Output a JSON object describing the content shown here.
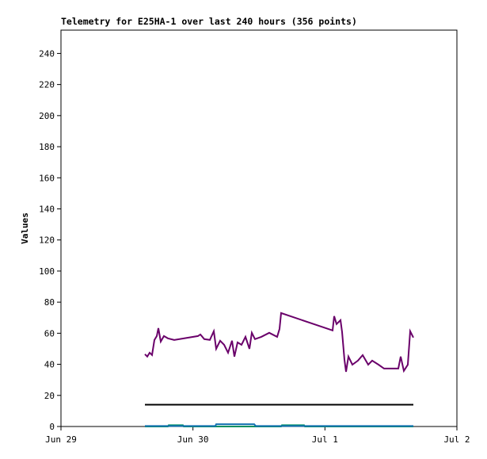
{
  "chart_data": {
    "type": "line",
    "title": "Telemetry for E25HA-1 over last 240 hours (356 points)",
    "y_label": "Values",
    "xlim": [
      0,
      3
    ],
    "xticks": [
      {
        "value": 0,
        "label": "Jun 29"
      },
      {
        "value": 1,
        "label": "Jun 30"
      },
      {
        "value": 2,
        "label": "Jul 1"
      },
      {
        "value": 3,
        "label": "Jul 2"
      }
    ],
    "ylim": [
      0,
      255
    ],
    "yticks": [
      0,
      20,
      40,
      60,
      80,
      100,
      120,
      140,
      160,
      180,
      200,
      220,
      240
    ],
    "series": [
      {
        "color": "#6a006a",
        "x": [
          0.636,
          0.654,
          0.672,
          0.69,
          0.708,
          0.726,
          0.738,
          0.756,
          0.78,
          0.81,
          0.858,
          1.038,
          1.056,
          1.086,
          1.128,
          1.158,
          1.176,
          1.206,
          1.236,
          1.266,
          1.296,
          1.314,
          1.338,
          1.368,
          1.398,
          1.428,
          1.446,
          1.47,
          1.518,
          1.578,
          1.638,
          1.656,
          1.668,
          2.058,
          2.07,
          2.088,
          2.118,
          2.13,
          2.148,
          2.16,
          2.178,
          2.208,
          2.25,
          2.286,
          2.328,
          2.358,
          2.406,
          2.448,
          2.508,
          2.556,
          2.574,
          2.598,
          2.628,
          2.646,
          2.67
        ],
        "values": [
          46.5,
          45,
          47.5,
          46,
          55.7,
          58.2,
          63.3,
          54.6,
          58.2,
          56.7,
          55.7,
          58.2,
          59.2,
          56.2,
          55.7,
          61.3,
          50,
          55.2,
          52.6,
          47.5,
          55.2,
          45,
          54.1,
          52.6,
          57.7,
          50,
          60.3,
          56.2,
          57.7,
          60.3,
          57.7,
          62.8,
          73,
          61.8,
          71,
          65.9,
          68.4,
          60.8,
          42.9,
          35.2,
          45,
          39.8,
          42.4,
          45.9,
          39.8,
          42.4,
          39.8,
          37.3,
          37.3,
          37.3,
          45,
          35.8,
          39.8,
          61.3,
          57.2
        ]
      },
      {
        "color": "#000000",
        "x": [
          0.636,
          2.67
        ],
        "values": [
          14,
          14
        ]
      },
      {
        "color": "#009060",
        "x": [
          0.636,
          0.81,
          0.816,
          0.924,
          0.93,
          1.668,
          1.674,
          1.842,
          1.848,
          2.67
        ],
        "values": [
          0,
          0,
          0.8,
          0.8,
          0,
          0,
          0.8,
          0.8,
          0,
          0
        ]
      },
      {
        "color": "#1070b0",
        "x": [
          0.636,
          1.17,
          1.176,
          1.464,
          1.476,
          2.67
        ],
        "values": [
          0.3,
          0.3,
          1.5,
          1.5,
          0.3,
          0.3
        ]
      }
    ]
  }
}
